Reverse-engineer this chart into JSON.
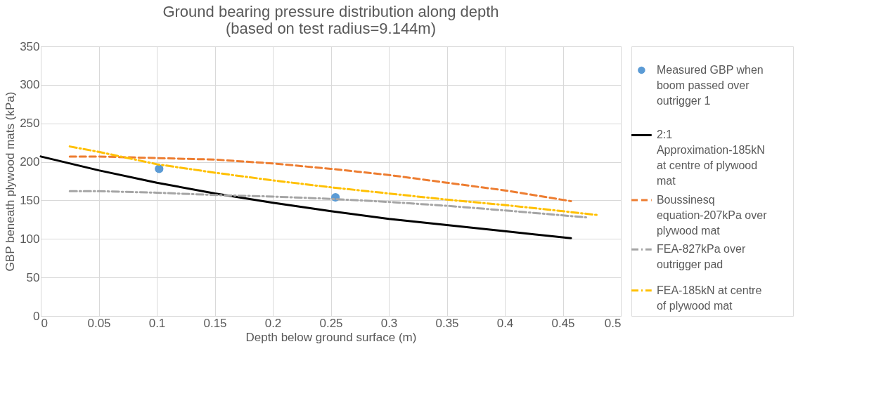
{
  "chart_data": {
    "type": "line",
    "title": "Ground bearing pressure distribution along depth",
    "subtitle": "(based on test radius=9.144m)",
    "xlabel": "Depth below ground surface (m)",
    "ylabel": "GBP beneath plywood mats (kPa)",
    "xlim": [
      0,
      0.5
    ],
    "xticks": [
      0,
      0.05,
      0.1,
      0.15,
      0.2,
      0.25,
      0.3,
      0.35,
      0.4,
      0.45,
      0.5
    ],
    "ylim": [
      0,
      350
    ],
    "yticks": [
      0,
      50,
      100,
      150,
      200,
      250,
      300,
      350
    ],
    "grid": true,
    "legend": "right",
    "series": [
      {
        "name": "Measured GBP when boom passed over outrigger 1",
        "type": "scatter",
        "marker": "circle",
        "color": "#5b9bd5",
        "x": [
          0.102,
          0.254
        ],
        "values": [
          191,
          154
        ]
      },
      {
        "name": "2:1 Approximation-185kN at centre of plywood mat",
        "line_style": "solid",
        "color": "#000000",
        "x": [
          0,
          0.05,
          0.1,
          0.15,
          0.2,
          0.25,
          0.3,
          0.35,
          0.4,
          0.457
        ],
        "values": [
          207,
          189,
          173,
          159,
          147,
          136,
          126,
          118,
          110,
          101
        ]
      },
      {
        "name": "Boussinesq equation-207kPa over plywood mat",
        "line_style": "dashed",
        "color": "#ed7d31",
        "x": [
          0.025,
          0.05,
          0.1,
          0.15,
          0.2,
          0.25,
          0.3,
          0.35,
          0.4,
          0.457
        ],
        "values": [
          207,
          207,
          205,
          203,
          198,
          191,
          183,
          173,
          163,
          149
        ]
      },
      {
        "name": "FEA-827kPa over outrigger pad",
        "line_style": "dotted",
        "color": "#a5a5a5",
        "x": [
          0.025,
          0.05,
          0.1,
          0.15,
          0.2,
          0.25,
          0.3,
          0.35,
          0.4,
          0.47
        ],
        "values": [
          162,
          162,
          160,
          157,
          155,
          152,
          148,
          143,
          137,
          128
        ]
      },
      {
        "name": "FEA-185kN at centre of plywood mat",
        "line_style": "dotted",
        "color": "#ffc000",
        "x": [
          0.025,
          0.05,
          0.1,
          0.15,
          0.2,
          0.25,
          0.3,
          0.35,
          0.4,
          0.45,
          0.48
        ],
        "values": [
          220,
          213,
          197,
          186,
          176,
          167,
          159,
          151,
          144,
          136,
          131
        ]
      }
    ]
  }
}
